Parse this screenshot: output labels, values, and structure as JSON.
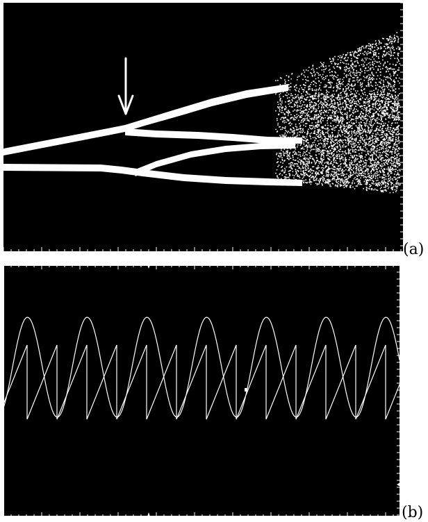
{
  "figure": {
    "panel_a": {
      "label": "(a)",
      "foreground_color": "#ffffff",
      "background_color": "#000000",
      "annotation": "arrow-icon"
    },
    "panel_b": {
      "label": "(b)",
      "foreground_color": "#ffffff",
      "background_color": "#000000",
      "traces": [
        "sine-wave",
        "sawtooth-wave"
      ]
    }
  }
}
